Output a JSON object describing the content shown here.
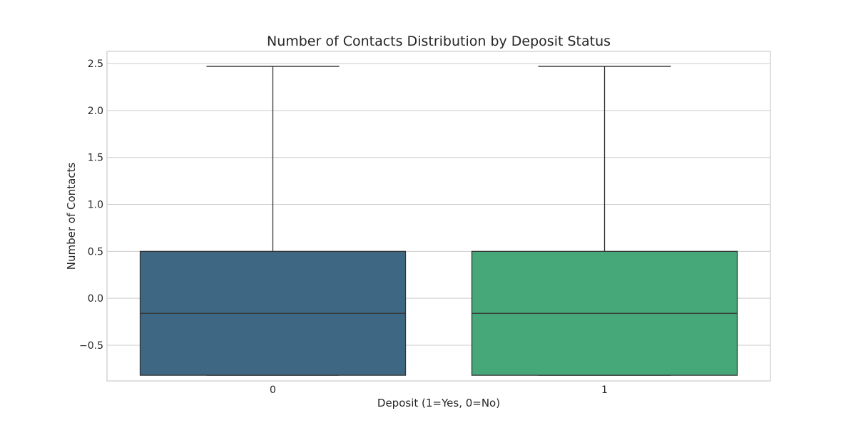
{
  "chart_data": {
    "type": "box",
    "title": "Number of Contacts Distribution by Deposit Status",
    "xlabel": "Deposit (1=Yes, 0=No)",
    "ylabel": "Number of Contacts",
    "categories": [
      "0",
      "1"
    ],
    "ylim": [
      -0.88,
      2.63
    ],
    "yticks": [
      -0.5,
      0.0,
      0.5,
      1.0,
      1.5,
      2.0,
      2.5
    ],
    "ytick_labels": [
      "−0.5",
      "0.0",
      "0.5",
      "1.0",
      "1.5",
      "2.0",
      "2.5"
    ],
    "grid": "horizontal",
    "boxes": [
      {
        "category": "0",
        "whisker_low": -0.82,
        "q1": -0.82,
        "median": -0.16,
        "q3": 0.5,
        "whisker_high": 2.47,
        "color": "#3e6784"
      },
      {
        "category": "1",
        "whisker_low": -0.82,
        "q1": -0.82,
        "median": -0.16,
        "q3": 0.5,
        "whisker_high": 2.47,
        "color": "#46a879"
      }
    ]
  }
}
